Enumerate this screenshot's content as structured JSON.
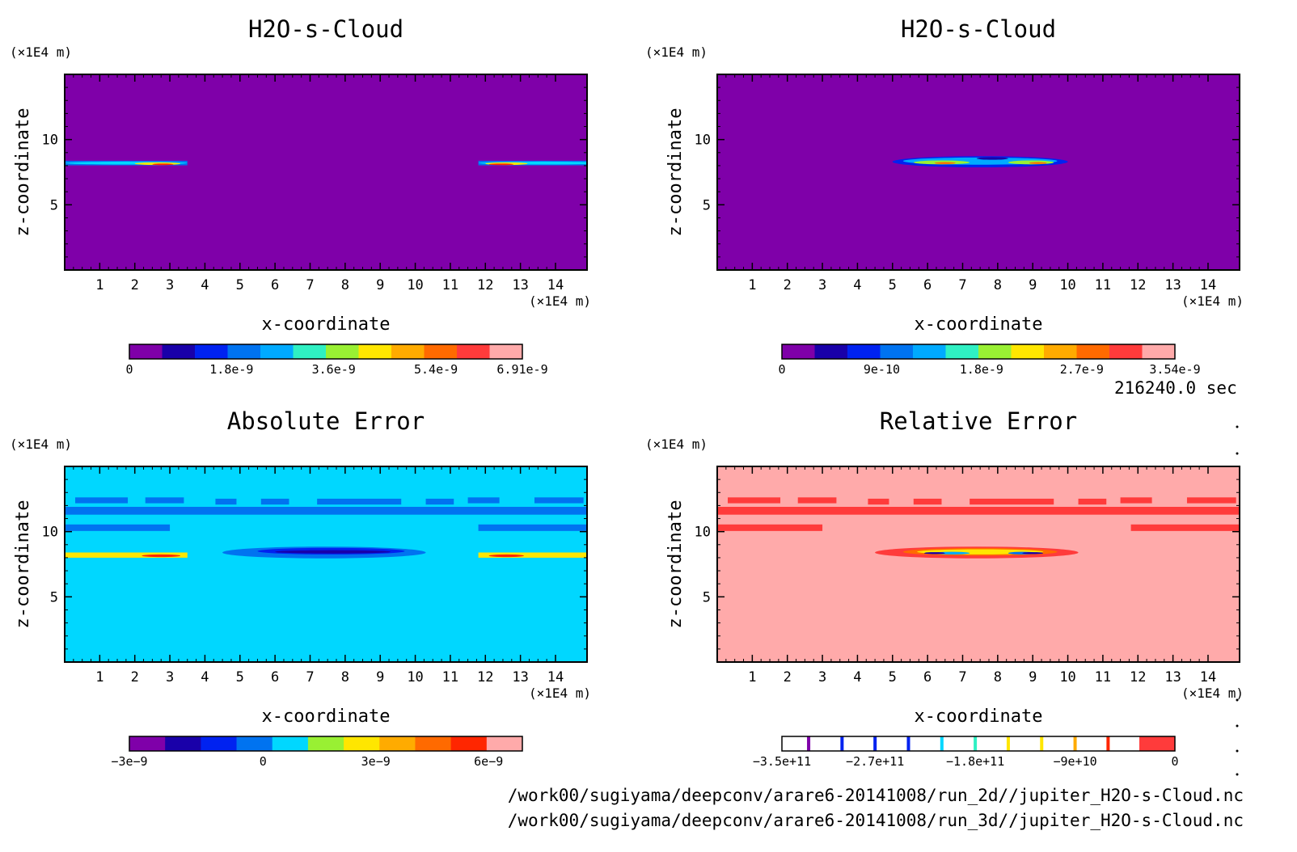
{
  "colors": {
    "levels": [
      "#7f00a9",
      "#1900a9",
      "#0022f0",
      "#0073f0",
      "#00aaff",
      "#00d7ff",
      "#2ff0c3",
      "#99f033",
      "#ffe600",
      "#ffab00",
      "#ff6a00",
      "#ff2600",
      "#ff3b3b",
      "#ffaaaa"
    ],
    "panel1_background": "#7f00a9",
    "panel2_background": "#7f00a9",
    "panel3_background": "#00d7ff",
    "panel4_background": "#ffaaaa"
  },
  "time_label": "216240.0 sec",
  "files": [
    "/work00/sugiyama/deepconv/arare6-20141008/run_2d//jupiter_H2O-s-Cloud.nc",
    "/work00/sugiyama/deepconv/arare6-20141008/run_3d//jupiter_H2O-s-Cloud.nc"
  ],
  "chart_data": [
    {
      "type": "heatmap",
      "title": "H2O-s-Cloud",
      "xlabel": "x-coordinate",
      "ylabel": "z-coordinate",
      "x_unit": "(×1E4 m)",
      "y_unit": "(×1E4 m)",
      "xlim": [
        0,
        14.9
      ],
      "ylim": [
        0,
        15
      ],
      "x_ticks": [
        "1",
        "2",
        "3",
        "4",
        "5",
        "6",
        "7",
        "8",
        "9",
        "10",
        "11",
        "12",
        "13",
        "14"
      ],
      "y_ticks": [
        "5",
        "10"
      ],
      "background_value": 0,
      "features": [
        {
          "x": [
            0,
            3.5
          ],
          "z_center": 8.2,
          "peak": "about 5e-9, near x=3"
        },
        {
          "x": [
            11.8,
            14.9
          ],
          "z_center": 8.2,
          "peak": "about 5e-9, near x=12"
        }
      ],
      "colorbar": {
        "ticks": [
          "0",
          "1.8e-9",
          "3.6e-9",
          "5.4e-9",
          "6.91e-9"
        ],
        "range": [
          0,
          6.91e-09
        ]
      }
    },
    {
      "type": "heatmap",
      "title": "H2O-s-Cloud",
      "xlabel": "x-coordinate",
      "ylabel": "z-coordinate",
      "x_unit": "(×1E4 m)",
      "y_unit": "(×1E4 m)",
      "xlim": [
        0,
        14.9
      ],
      "ylim": [
        0,
        15
      ],
      "x_ticks": [
        "1",
        "2",
        "3",
        "4",
        "5",
        "6",
        "7",
        "8",
        "9",
        "10",
        "11",
        "12",
        "13",
        "14"
      ],
      "y_ticks": [
        "5",
        "10"
      ],
      "background_value": 0,
      "features": [
        {
          "x": [
            5,
            10
          ],
          "z_center": 8.3,
          "peak": "about 2.7e-9, near x=6 and x=9"
        }
      ],
      "colorbar": {
        "ticks": [
          "0",
          "9e-10",
          "1.8e-9",
          "2.7e-9",
          "3.54e-9"
        ],
        "range": [
          0,
          3.54e-09
        ]
      }
    },
    {
      "type": "heatmap",
      "title": "Absolute Error",
      "xlabel": "x-coordinate",
      "ylabel": "z-coordinate",
      "x_unit": "(×1E4 m)",
      "y_unit": "(×1E4 m)",
      "xlim": [
        0,
        14.9
      ],
      "ylim": [
        0,
        15
      ],
      "x_ticks": [
        "1",
        "2",
        "3",
        "4",
        "5",
        "6",
        "7",
        "8",
        "9",
        "10",
        "11",
        "12",
        "13",
        "14"
      ],
      "y_ticks": [
        "5",
        "10"
      ],
      "background_value": 0,
      "features": [
        {
          "x": [
            0,
            3.5
          ],
          "z_center": 8.2,
          "sign": "positive"
        },
        {
          "x": [
            11.8,
            14.9
          ],
          "z_center": 8.2,
          "sign": "positive"
        },
        {
          "x": [
            4.5,
            10.3
          ],
          "z_center": 8.3,
          "sign": "negative"
        },
        {
          "x": [
            0,
            14.9
          ],
          "z_center": 11.5,
          "sign": "slightly negative"
        }
      ],
      "colorbar": {
        "ticks": [
          "−3e−9",
          "0",
          "3e−9",
          "6e−9"
        ],
        "range": [
          -3.54e-09,
          6.91e-09
        ]
      }
    },
    {
      "type": "heatmap",
      "title": "Relative Error",
      "xlabel": "x-coordinate",
      "ylabel": "z-coordinate",
      "x_unit": "(×1E4 m)",
      "y_unit": "(×1E4 m)",
      "xlim": [
        0,
        14.9
      ],
      "ylim": [
        0,
        15
      ],
      "x_ticks": [
        "1",
        "2",
        "3",
        "4",
        "5",
        "6",
        "7",
        "8",
        "9",
        "10",
        "11",
        "12",
        "13",
        "14"
      ],
      "y_ticks": [
        "5",
        "10"
      ],
      "background_value": 0,
      "features": [
        {
          "x": [
            4.5,
            10.3
          ],
          "z_center": 8.3,
          "sign": "negative"
        },
        {
          "x": [
            0,
            14.9
          ],
          "z_center": 11.5,
          "sign": "slightly negative"
        }
      ],
      "colorbar": {
        "ticks": [
          "−3.5e+11",
          "−2.7e+11",
          "−1.8e+11",
          "−9e+10",
          "0"
        ],
        "range": [
          -350000000000.0,
          0
        ]
      }
    }
  ]
}
